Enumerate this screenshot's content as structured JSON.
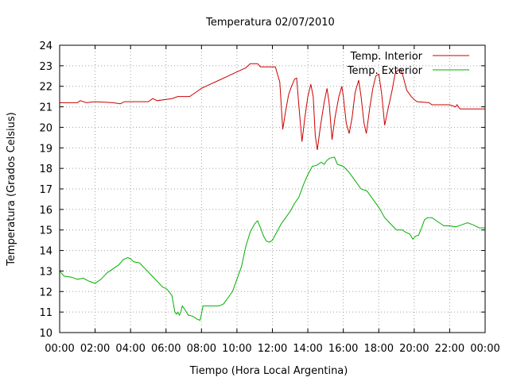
{
  "chart_data": {
    "type": "line",
    "title": "Temperatura 02/07/2010",
    "xlabel": "Tiempo (Hora Local Argentina)",
    "ylabel": "Temperatura (Grados Celsius)",
    "xlim": [
      "00:00",
      "24:00"
    ],
    "ylim": [
      10,
      24
    ],
    "grid": true,
    "legend_position": "top-right",
    "x_tick_labels": [
      "00:00",
      "02:00",
      "04:00",
      "06:00",
      "08:00",
      "10:00",
      "12:00",
      "14:00",
      "16:00",
      "18:00",
      "20:00",
      "22:00",
      "00:00"
    ],
    "y_tick_labels": [
      "10",
      "11",
      "12",
      "13",
      "14",
      "15",
      "16",
      "17",
      "18",
      "19",
      "20",
      "21",
      "22",
      "23",
      "24"
    ],
    "series": [
      {
        "name": "Temp. Interior",
        "color": "#cc0000",
        "points": [
          [
            "00:00",
            21.2
          ],
          [
            "01:00",
            21.2
          ],
          [
            "01:10",
            21.3
          ],
          [
            "01:30",
            21.2
          ],
          [
            "02:00",
            21.25
          ],
          [
            "03:00",
            21.2
          ],
          [
            "03:25",
            21.15
          ],
          [
            "03:40",
            21.25
          ],
          [
            "05:00",
            21.25
          ],
          [
            "05:15",
            21.4
          ],
          [
            "05:30",
            21.3
          ],
          [
            "06:20",
            21.4
          ],
          [
            "06:40",
            21.5
          ],
          [
            "07:00",
            21.5
          ],
          [
            "07:20",
            21.5
          ],
          [
            "07:40",
            21.7
          ],
          [
            "08:00",
            21.9
          ],
          [
            "08:30",
            22.1
          ],
          [
            "09:00",
            22.3
          ],
          [
            "09:30",
            22.5
          ],
          [
            "10:00",
            22.7
          ],
          [
            "10:30",
            22.9
          ],
          [
            "10:45",
            23.1
          ],
          [
            "11:10",
            23.1
          ],
          [
            "11:20",
            22.95
          ],
          [
            "12:10",
            22.95
          ],
          [
            "12:25",
            22.2
          ],
          [
            "12:35",
            19.9
          ],
          [
            "12:45",
            20.8
          ],
          [
            "12:55",
            21.6
          ],
          [
            "13:05",
            22.0
          ],
          [
            "13:15",
            22.35
          ],
          [
            "13:22",
            22.4
          ],
          [
            "13:30",
            21.0
          ],
          [
            "13:40",
            19.3
          ],
          [
            "13:50",
            20.5
          ],
          [
            "14:00",
            21.5
          ],
          [
            "14:10",
            22.1
          ],
          [
            "14:18",
            21.5
          ],
          [
            "14:25",
            19.6
          ],
          [
            "14:32",
            18.9
          ],
          [
            "14:42",
            20.0
          ],
          [
            "14:55",
            21.2
          ],
          [
            "15:05",
            21.9
          ],
          [
            "15:12",
            21.2
          ],
          [
            "15:22",
            19.4
          ],
          [
            "15:32",
            20.5
          ],
          [
            "15:45",
            21.5
          ],
          [
            "15:55",
            22.0
          ],
          [
            "16:00",
            21.5
          ],
          [
            "16:10",
            20.2
          ],
          [
            "16:20",
            19.7
          ],
          [
            "16:30",
            20.5
          ],
          [
            "16:40",
            21.7
          ],
          [
            "16:52",
            22.3
          ],
          [
            "17:00",
            21.5
          ],
          [
            "17:10",
            20.2
          ],
          [
            "17:18",
            19.7
          ],
          [
            "17:30",
            21.0
          ],
          [
            "17:40",
            21.9
          ],
          [
            "17:50",
            22.5
          ],
          [
            "18:00",
            22.6
          ],
          [
            "18:10",
            21.6
          ],
          [
            "18:20",
            20.1
          ],
          [
            "18:30",
            20.8
          ],
          [
            "18:45",
            21.8
          ],
          [
            "18:55",
            22.6
          ],
          [
            "19:05",
            22.8
          ],
          [
            "19:15",
            22.8
          ],
          [
            "19:22",
            22.5
          ],
          [
            "19:35",
            21.8
          ],
          [
            "19:50",
            21.5
          ],
          [
            "20:00",
            21.35
          ],
          [
            "20:10",
            21.25
          ],
          [
            "20:50",
            21.2
          ],
          [
            "21:00",
            21.1
          ],
          [
            "21:50",
            21.1
          ],
          [
            "22:00",
            21.1
          ],
          [
            "22:20",
            21.0
          ],
          [
            "22:25",
            21.1
          ],
          [
            "22:35",
            20.9
          ],
          [
            "24:00",
            20.9
          ]
        ]
      },
      {
        "name": "Temp. Exterior",
        "color": "#00b000",
        "points": [
          [
            "00:00",
            13.0
          ],
          [
            "00:15",
            12.75
          ],
          [
            "00:40",
            12.7
          ],
          [
            "01:00",
            12.6
          ],
          [
            "01:20",
            12.65
          ],
          [
            "01:40",
            12.5
          ],
          [
            "02:00",
            12.4
          ],
          [
            "02:20",
            12.6
          ],
          [
            "02:40",
            12.9
          ],
          [
            "03:00",
            13.1
          ],
          [
            "03:20",
            13.3
          ],
          [
            "03:35",
            13.55
          ],
          [
            "03:50",
            13.65
          ],
          [
            "04:00",
            13.6
          ],
          [
            "04:10",
            13.45
          ],
          [
            "04:30",
            13.4
          ],
          [
            "04:50",
            13.1
          ],
          [
            "05:10",
            12.8
          ],
          [
            "05:30",
            12.5
          ],
          [
            "05:50",
            12.2
          ],
          [
            "06:00",
            12.15
          ],
          [
            "06:10",
            12.0
          ],
          [
            "06:20",
            11.8
          ],
          [
            "06:30",
            11.0
          ],
          [
            "06:35",
            10.9
          ],
          [
            "06:40",
            11.0
          ],
          [
            "06:45",
            10.85
          ],
          [
            "06:50",
            11.0
          ],
          [
            "06:55",
            11.3
          ],
          [
            "07:05",
            11.1
          ],
          [
            "07:15",
            10.85
          ],
          [
            "07:30",
            10.8
          ],
          [
            "07:45",
            10.65
          ],
          [
            "07:55",
            10.6
          ],
          [
            "08:00",
            10.9
          ],
          [
            "08:05",
            11.3
          ],
          [
            "08:30",
            11.3
          ],
          [
            "09:00",
            11.3
          ],
          [
            "09:15",
            11.4
          ],
          [
            "09:30",
            11.7
          ],
          [
            "09:45",
            12.0
          ],
          [
            "10:00",
            12.6
          ],
          [
            "10:15",
            13.2
          ],
          [
            "10:30",
            14.2
          ],
          [
            "10:45",
            14.9
          ],
          [
            "11:00",
            15.3
          ],
          [
            "11:10",
            15.45
          ],
          [
            "11:20",
            15.1
          ],
          [
            "11:30",
            14.7
          ],
          [
            "11:40",
            14.45
          ],
          [
            "11:50",
            14.4
          ],
          [
            "12:00",
            14.5
          ],
          [
            "12:15",
            14.9
          ],
          [
            "12:30",
            15.3
          ],
          [
            "12:45",
            15.6
          ],
          [
            "13:00",
            15.9
          ],
          [
            "13:15",
            16.3
          ],
          [
            "13:30",
            16.6
          ],
          [
            "13:45",
            17.2
          ],
          [
            "14:00",
            17.7
          ],
          [
            "14:15",
            18.1
          ],
          [
            "14:30",
            18.15
          ],
          [
            "14:45",
            18.3
          ],
          [
            "14:55",
            18.2
          ],
          [
            "15:05",
            18.4
          ],
          [
            "15:15",
            18.5
          ],
          [
            "15:30",
            18.55
          ],
          [
            "15:40",
            18.2
          ],
          [
            "16:00",
            18.1
          ],
          [
            "16:20",
            17.8
          ],
          [
            "16:40",
            17.4
          ],
          [
            "17:00",
            17.0
          ],
          [
            "17:20",
            16.9
          ],
          [
            "17:40",
            16.5
          ],
          [
            "18:00",
            16.1
          ],
          [
            "18:20",
            15.6
          ],
          [
            "18:40",
            15.3
          ],
          [
            "19:00",
            15.0
          ],
          [
            "19:20",
            15.0
          ],
          [
            "19:30",
            14.9
          ],
          [
            "19:45",
            14.8
          ],
          [
            "19:55",
            14.55
          ],
          [
            "20:05",
            14.7
          ],
          [
            "20:15",
            14.75
          ],
          [
            "20:25",
            15.1
          ],
          [
            "20:35",
            15.5
          ],
          [
            "20:45",
            15.6
          ],
          [
            "21:00",
            15.6
          ],
          [
            "21:20",
            15.4
          ],
          [
            "21:40",
            15.2
          ],
          [
            "22:00",
            15.2
          ],
          [
            "22:20",
            15.15
          ],
          [
            "22:40",
            15.25
          ],
          [
            "23:00",
            15.35
          ],
          [
            "23:20",
            15.25
          ],
          [
            "23:40",
            15.1
          ],
          [
            "24:00",
            15.1
          ]
        ]
      }
    ]
  }
}
